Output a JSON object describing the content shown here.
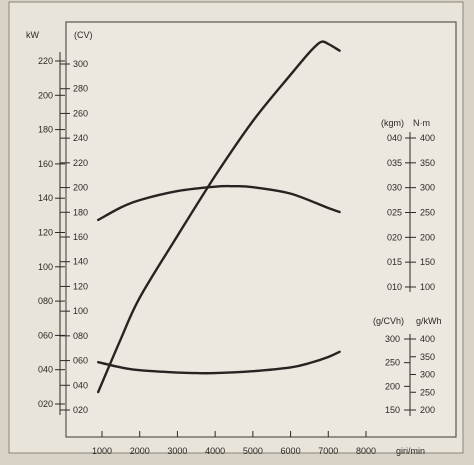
{
  "chart_data": {
    "type": "line",
    "xlabel": "giri/min",
    "x_ticks": [
      1000,
      2000,
      3000,
      4000,
      5000,
      6000,
      7000,
      8000
    ],
    "xlim": [
      700,
      8300
    ],
    "power_axes": {
      "kw": {
        "unit": "kW",
        "ticks": [
          "220",
          "200",
          "180",
          "160",
          "140",
          "120",
          "100",
          "080",
          "060",
          "040",
          "020"
        ],
        "range": [
          20,
          220
        ]
      },
      "cv": {
        "unit": "(CV)",
        "ticks": [
          "300",
          "280",
          "260",
          "240",
          "220",
          "200",
          "180",
          "160",
          "140",
          "120",
          "100",
          "080",
          "060",
          "040",
          "020"
        ],
        "range": [
          20,
          300
        ]
      }
    },
    "torque_axes": {
      "kgm": {
        "unit": "(kgm)",
        "ticks": [
          "040",
          "035",
          "030",
          "025",
          "020",
          "015",
          "010"
        ],
        "range": [
          10,
          40
        ]
      },
      "nm": {
        "unit": "N·m",
        "ticks": [
          "400",
          "350",
          "300",
          "250",
          "200",
          "150",
          "100"
        ],
        "range": [
          100,
          400
        ]
      }
    },
    "consumption_axes": {
      "gcvh": {
        "unit": "(g/CVh)",
        "ticks": [
          "300",
          "250",
          "200",
          "150"
        ],
        "range": [
          150,
          300
        ]
      },
      "gkwh": {
        "unit": "g/kWh",
        "ticks": [
          "400",
          "350",
          "300",
          "250",
          "200"
        ],
        "range": [
          200,
          400
        ]
      }
    },
    "series": [
      {
        "axis": "kw",
        "x": [
          900,
          1500,
          2000,
          3000,
          4000,
          5000,
          6000,
          6500,
          6800,
          7000,
          7300
        ],
        "y": [
          27,
          58,
          82,
          118,
          153,
          185,
          212,
          225,
          231,
          230,
          226
        ]
      },
      {
        "axis": "kgm",
        "x": [
          900,
          1500,
          2000,
          3000,
          4000,
          4500,
          5000,
          6000,
          7000,
          7300
        ],
        "y": [
          23.5,
          26,
          27.5,
          29.3,
          30.2,
          30.3,
          30.1,
          28.8,
          25.9,
          25.1
        ]
      },
      {
        "axis": "gcvh",
        "x": [
          900,
          1500,
          2000,
          3000,
          3500,
          4000,
          5000,
          6000,
          6500,
          7000,
          7300
        ],
        "y": [
          251,
          240,
          234,
          229,
          228,
          228,
          232,
          240,
          249,
          262,
          273
        ]
      }
    ],
    "grid": false,
    "legend": "none"
  }
}
